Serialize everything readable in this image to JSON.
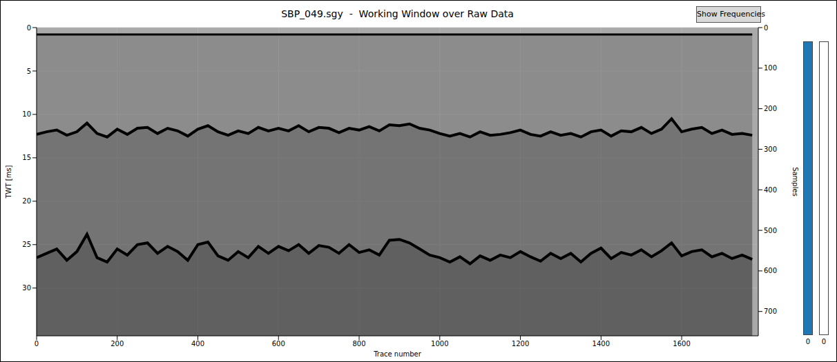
{
  "chart_data": {
    "type": "line",
    "title": "SBP_049.sgy  -  Working Window over Raw Data",
    "x_label": "Trace number",
    "y_label": "TWT [ms]",
    "y2_label": "Samples",
    "x": [
      0,
      25,
      50,
      75,
      100,
      125,
      150,
      175,
      200,
      225,
      250,
      275,
      300,
      325,
      350,
      375,
      400,
      425,
      450,
      475,
      500,
      525,
      550,
      575,
      600,
      625,
      650,
      675,
      700,
      725,
      750,
      775,
      800,
      825,
      850,
      875,
      900,
      925,
      950,
      975,
      1000,
      1025,
      1050,
      1075,
      1100,
      1125,
      1150,
      1175,
      1200,
      1225,
      1250,
      1275,
      1300,
      1325,
      1350,
      1375,
      1400,
      1425,
      1450,
      1475,
      1500,
      1525,
      1550,
      1575,
      1600,
      1625,
      1650,
      1675,
      1700,
      1725,
      1750,
      1775
    ],
    "series": [
      {
        "color": "#000000",
        "values": [
          0.8,
          0.8,
          0.8,
          0.8,
          0.8,
          0.8,
          0.8,
          0.8,
          0.8,
          0.8,
          0.8,
          0.8,
          0.8,
          0.8,
          0.8,
          0.8,
          0.8,
          0.8,
          0.8,
          0.8,
          0.8,
          0.8,
          0.8,
          0.8,
          0.8,
          0.8,
          0.8,
          0.8,
          0.8,
          0.8,
          0.8,
          0.8,
          0.8,
          0.8,
          0.8,
          0.8,
          0.8,
          0.8,
          0.8,
          0.8,
          0.8,
          0.8,
          0.8,
          0.8,
          0.8,
          0.8,
          0.8,
          0.8,
          0.8,
          0.8,
          0.8,
          0.8,
          0.8,
          0.8,
          0.8,
          0.8,
          0.8,
          0.8,
          0.8,
          0.8,
          0.8,
          0.8,
          0.8,
          0.8,
          0.8,
          0.8,
          0.8,
          0.8,
          0.8,
          0.8,
          0.8,
          0.8
        ]
      },
      {
        "color": "#000000",
        "values": [
          12.3,
          12.0,
          11.8,
          12.4,
          12.0,
          11.0,
          12.2,
          12.6,
          11.7,
          12.3,
          11.6,
          11.5,
          12.2,
          11.6,
          11.9,
          12.5,
          11.7,
          11.3,
          12.0,
          12.4,
          11.9,
          12.2,
          11.5,
          11.9,
          11.6,
          11.9,
          11.3,
          12.0,
          11.5,
          11.6,
          12.1,
          11.6,
          11.8,
          11.4,
          11.9,
          11.2,
          11.3,
          11.1,
          11.6,
          11.8,
          12.2,
          12.5,
          12.2,
          12.6,
          12.0,
          12.4,
          12.3,
          12.1,
          11.8,
          12.3,
          12.5,
          12.0,
          12.4,
          12.2,
          12.6,
          12.0,
          11.8,
          12.5,
          11.9,
          12.0,
          11.5,
          12.2,
          11.7,
          10.5,
          12.0,
          11.7,
          11.5,
          12.2,
          11.8,
          12.3,
          12.2,
          12.4
        ]
      },
      {
        "color": "#000000",
        "values": [
          26.5,
          26.0,
          25.5,
          26.8,
          25.8,
          23.8,
          26.5,
          27.0,
          25.5,
          26.2,
          25.0,
          24.8,
          26.0,
          25.2,
          25.8,
          26.8,
          25.0,
          24.7,
          26.3,
          26.8,
          25.8,
          26.5,
          25.2,
          26.0,
          25.2,
          25.7,
          25.0,
          26.0,
          25.1,
          25.3,
          26.0,
          25.0,
          25.9,
          25.6,
          26.2,
          24.5,
          24.4,
          24.8,
          25.5,
          26.2,
          26.5,
          27.0,
          26.4,
          27.2,
          26.3,
          26.8,
          26.2,
          26.5,
          25.8,
          26.4,
          26.9,
          26.0,
          26.6,
          26.0,
          27.0,
          26.0,
          25.4,
          26.6,
          25.9,
          26.2,
          25.6,
          26.4,
          25.7,
          24.8,
          26.3,
          25.8,
          25.6,
          26.4,
          26.0,
          26.6,
          26.2,
          26.7
        ]
      }
    ],
    "xlim": [
      0,
      1790
    ],
    "xticks": [
      0,
      200,
      400,
      600,
      800,
      1000,
      1200,
      1400,
      1600
    ],
    "ylim": [
      0,
      35.5
    ],
    "yticks": [
      0,
      5,
      10,
      15,
      20,
      25,
      30
    ],
    "y2lim": [
      0,
      760
    ],
    "y2ticks": [
      0,
      100,
      200,
      300,
      400,
      500,
      600,
      700
    ],
    "grid": true
  },
  "button": "Show Frequencies",
  "sliders": [
    {
      "color": "#1f77b4",
      "value": 0
    },
    {
      "color": "#ffffff",
      "value": 0
    }
  ]
}
